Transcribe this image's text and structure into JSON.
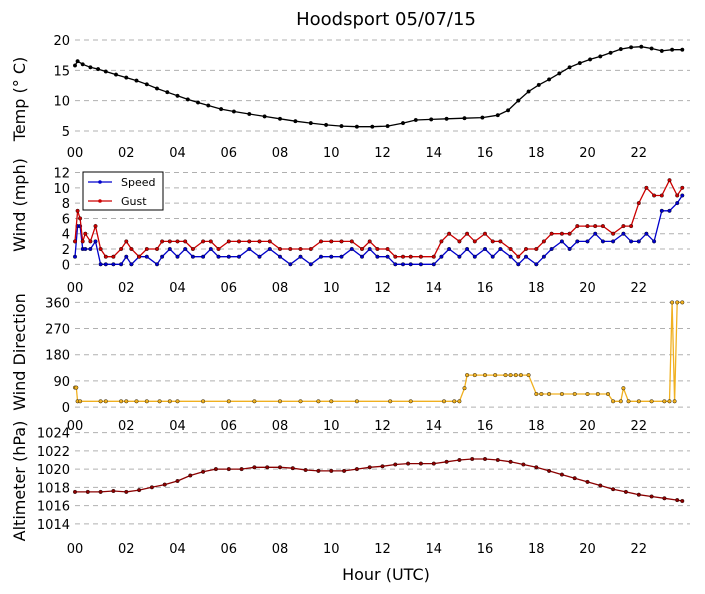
{
  "title": "Hoodsport 05/07/15",
  "xlabel": "Hour (UTC)",
  "colors": {
    "temp": "#000000",
    "speed": "#0000cc",
    "gust": "#cc0000",
    "direction": "#f0b020",
    "altimeter": "#8b0000",
    "grid": "#b0b0b0"
  },
  "chart_data": [
    {
      "type": "line",
      "ylabel": "Temp ($^\\circ$C)",
      "ylabel_display": "Temp (° C)",
      "xlim": [
        0,
        24
      ],
      "ylim": [
        4,
        20.5
      ],
      "xticks": [
        "00",
        "02",
        "04",
        "06",
        "08",
        "10",
        "12",
        "14",
        "16",
        "18",
        "20",
        "22"
      ],
      "yticks": [
        5,
        10,
        15,
        20
      ],
      "grid": true,
      "series": [
        {
          "color": "#000000",
          "x": [
            0,
            0.1,
            0.3,
            0.6,
            0.9,
            1.2,
            1.6,
            2.0,
            2.4,
            2.8,
            3.2,
            3.6,
            4.0,
            4.4,
            4.8,
            5.2,
            5.7,
            6.2,
            6.8,
            7.4,
            8.0,
            8.6,
            9.2,
            9.8,
            10.4,
            11.0,
            11.6,
            12.2,
            12.8,
            13.3,
            13.9,
            14.5,
            15.2,
            15.9,
            16.5,
            16.9,
            17.3,
            17.7,
            18.1,
            18.5,
            18.9,
            19.3,
            19.7,
            20.1,
            20.5,
            20.9,
            21.3,
            21.7,
            22.1,
            22.5,
            22.9,
            23.3,
            23.7
          ],
          "y": [
            15.8,
            16.5,
            16.0,
            15.5,
            15.2,
            14.8,
            14.3,
            13.8,
            13.3,
            12.7,
            12.0,
            11.4,
            10.8,
            10.2,
            9.7,
            9.2,
            8.6,
            8.2,
            7.8,
            7.4,
            7.0,
            6.6,
            6.3,
            6.0,
            5.8,
            5.7,
            5.7,
            5.8,
            6.3,
            6.8,
            6.9,
            7.0,
            7.1,
            7.2,
            7.6,
            8.4,
            10.0,
            11.5,
            12.6,
            13.5,
            14.5,
            15.5,
            16.2,
            16.8,
            17.3,
            17.9,
            18.5,
            18.8,
            18.9,
            18.6,
            18.2,
            18.4,
            18.4
          ]
        }
      ]
    },
    {
      "type": "line",
      "ylabel": "Wind (mph)",
      "xlim": [
        0,
        24
      ],
      "ylim": [
        -1,
        12.2
      ],
      "xticks": [
        "00",
        "02",
        "04",
        "06",
        "08",
        "10",
        "12",
        "14",
        "16",
        "18",
        "20",
        "22"
      ],
      "yticks": [
        0,
        2,
        4,
        6,
        8,
        10,
        12
      ],
      "grid": true,
      "legend": "top-left",
      "series": [
        {
          "name": "Speed",
          "color": "#0000cc",
          "x": [
            0,
            0.1,
            0.2,
            0.3,
            0.4,
            0.6,
            0.8,
            1.0,
            1.2,
            1.5,
            1.8,
            2.0,
            2.2,
            2.5,
            2.8,
            3.2,
            3.4,
            3.7,
            4.0,
            4.3,
            4.6,
            5.0,
            5.3,
            5.6,
            6.0,
            6.4,
            6.8,
            7.2,
            7.6,
            8.0,
            8.4,
            8.8,
            9.2,
            9.6,
            10.0,
            10.4,
            10.8,
            11.2,
            11.5,
            11.8,
            12.2,
            12.5,
            12.8,
            13.1,
            13.5,
            14.0,
            14.3,
            14.6,
            15.0,
            15.3,
            15.6,
            16.0,
            16.3,
            16.6,
            17.0,
            17.3,
            17.6,
            18.0,
            18.3,
            18.6,
            19.0,
            19.3,
            19.6,
            20.0,
            20.3,
            20.6,
            21.0,
            21.4,
            21.7,
            22.0,
            22.3,
            22.6,
            22.9,
            23.2,
            23.5,
            23.7
          ],
          "y": [
            1,
            5,
            5,
            2,
            2,
            2,
            3,
            0,
            0,
            0,
            0,
            1,
            0,
            1,
            1,
            0,
            1,
            2,
            1,
            2,
            1,
            1,
            2,
            1,
            1,
            1,
            2,
            1,
            2,
            1,
            0,
            1,
            0,
            1,
            1,
            1,
            2,
            1,
            2,
            1,
            1,
            0,
            0,
            0,
            0,
            0,
            1,
            2,
            1,
            2,
            1,
            2,
            1,
            2,
            1,
            0,
            1,
            0,
            1,
            2,
            3,
            2,
            3,
            3,
            4,
            3,
            3,
            4,
            3,
            3,
            4,
            3,
            7,
            7,
            8,
            9
          ]
        },
        {
          "name": "Gust",
          "color": "#cc0000",
          "x": [
            0,
            0.1,
            0.2,
            0.3,
            0.4,
            0.6,
            0.8,
            1.0,
            1.2,
            1.5,
            1.8,
            2.0,
            2.2,
            2.5,
            2.8,
            3.2,
            3.4,
            3.7,
            4.0,
            4.3,
            4.6,
            5.0,
            5.3,
            5.6,
            6.0,
            6.4,
            6.8,
            7.2,
            7.6,
            8.0,
            8.4,
            8.8,
            9.2,
            9.6,
            10.0,
            10.4,
            10.8,
            11.2,
            11.5,
            11.8,
            12.2,
            12.5,
            12.8,
            13.1,
            13.5,
            14.0,
            14.3,
            14.6,
            15.0,
            15.3,
            15.6,
            16.0,
            16.3,
            16.6,
            17.0,
            17.3,
            17.6,
            18.0,
            18.3,
            18.6,
            19.0,
            19.3,
            19.6,
            20.0,
            20.3,
            20.6,
            21.0,
            21.4,
            21.7,
            22.0,
            22.3,
            22.6,
            22.9,
            23.2,
            23.5,
            23.7
          ],
          "y": [
            3,
            7,
            6,
            3,
            4,
            3,
            5,
            2,
            1,
            1,
            2,
            3,
            2,
            1,
            2,
            2,
            3,
            3,
            3,
            3,
            2,
            3,
            3,
            2,
            3,
            3,
            3,
            3,
            3,
            2,
            2,
            2,
            2,
            3,
            3,
            3,
            3,
            2,
            3,
            2,
            2,
            1,
            1,
            1,
            1,
            1,
            3,
            4,
            3,
            4,
            3,
            4,
            3,
            3,
            2,
            1,
            2,
            2,
            3,
            4,
            4,
            4,
            5,
            5,
            5,
            5,
            4,
            5,
            5,
            8,
            10,
            9,
            9,
            11,
            9,
            10
          ]
        }
      ]
    },
    {
      "type": "line",
      "ylabel": "Wind Direction",
      "xlim": [
        0,
        24
      ],
      "ylim": [
        -10,
        375
      ],
      "xticks": [
        "00",
        "02",
        "04",
        "06",
        "08",
        "10",
        "12",
        "14",
        "16",
        "18",
        "20",
        "22"
      ],
      "yticks": [
        0,
        90,
        180,
        270,
        360
      ],
      "grid": true,
      "series": [
        {
          "color": "#f0b020",
          "x": [
            0,
            0.05,
            0.1,
            0.2,
            1.0,
            1.2,
            1.8,
            2.0,
            2.4,
            2.8,
            3.3,
            3.7,
            4.0,
            5.0,
            6.0,
            7.0,
            8.0,
            8.8,
            9.5,
            10.0,
            11.0,
            12.3,
            13.1,
            14.4,
            14.8,
            15.0,
            15.2,
            15.3,
            15.6,
            16.0,
            16.4,
            16.8,
            17.0,
            17.2,
            17.4,
            17.7,
            18.0,
            18.2,
            18.5,
            19.0,
            19.5,
            20.0,
            20.4,
            20.8,
            21.0,
            21.3,
            21.4,
            21.6,
            22.0,
            22.5,
            23.0,
            23.2,
            23.3,
            23.4,
            23.5,
            23.7
          ],
          "y": [
            67,
            67,
            20,
            20,
            20,
            20,
            20,
            20,
            20,
            20,
            20,
            20,
            20,
            20,
            20,
            20,
            20,
            20,
            20,
            20,
            20,
            20,
            20,
            20,
            20,
            20,
            65,
            110,
            110,
            110,
            110,
            110,
            110,
            110,
            110,
            110,
            45,
            45,
            45,
            45,
            45,
            45,
            45,
            45,
            20,
            20,
            65,
            20,
            20,
            20,
            20,
            20,
            360,
            20,
            360,
            360
          ]
        }
      ]
    },
    {
      "type": "line",
      "ylabel": "Altimeter (hPa)",
      "xlim": [
        0,
        24
      ],
      "ylim": [
        1013,
        1024.5
      ],
      "xticks": [
        "00",
        "02",
        "04",
        "06",
        "08",
        "10",
        "12",
        "14",
        "16",
        "18",
        "20",
        "22"
      ],
      "yticks": [
        1014,
        1016,
        1018,
        1020,
        1022,
        1024
      ],
      "grid": true,
      "series": [
        {
          "color": "#8b0000",
          "x": [
            0,
            0.5,
            1.0,
            1.5,
            2.0,
            2.5,
            3.0,
            3.5,
            4.0,
            4.5,
            5.0,
            5.5,
            6.0,
            6.5,
            7.0,
            7.5,
            8.0,
            8.5,
            9.0,
            9.5,
            10.0,
            10.5,
            11.0,
            11.5,
            12.0,
            12.5,
            13.0,
            13.5,
            14.0,
            14.5,
            15.0,
            15.5,
            16.0,
            16.5,
            17.0,
            17.5,
            18.0,
            18.5,
            19.0,
            19.5,
            20.0,
            20.5,
            21.0,
            21.5,
            22.0,
            22.5,
            23.0,
            23.5,
            23.7
          ],
          "y": [
            1017.5,
            1017.5,
            1017.5,
            1017.6,
            1017.5,
            1017.7,
            1018.0,
            1018.3,
            1018.7,
            1019.3,
            1019.7,
            1020.0,
            1020.0,
            1020.0,
            1020.2,
            1020.2,
            1020.2,
            1020.1,
            1019.9,
            1019.8,
            1019.8,
            1019.8,
            1020.0,
            1020.2,
            1020.3,
            1020.5,
            1020.6,
            1020.6,
            1020.6,
            1020.8,
            1021.0,
            1021.1,
            1021.1,
            1021.0,
            1020.8,
            1020.5,
            1020.2,
            1019.8,
            1019.4,
            1019.0,
            1018.6,
            1018.2,
            1017.8,
            1017.5,
            1017.2,
            1017.0,
            1016.8,
            1016.6,
            1016.5
          ]
        }
      ]
    }
  ]
}
